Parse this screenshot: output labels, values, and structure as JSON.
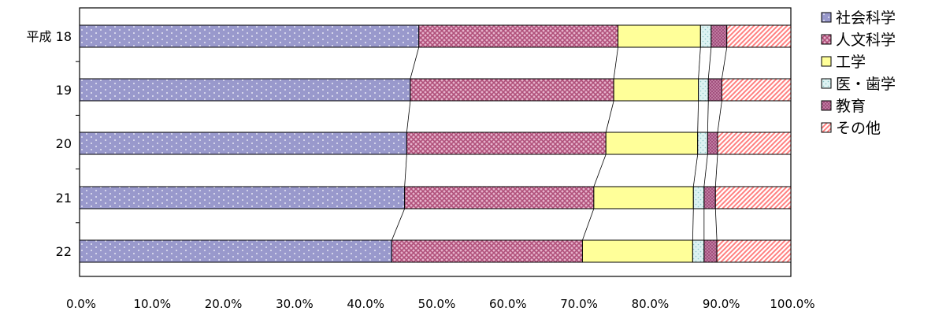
{
  "chart_data": {
    "type": "bar",
    "orientation": "horizontal",
    "stacked": "percent",
    "categories": [
      "平成 18",
      "19",
      "20",
      "21",
      "22"
    ],
    "series": [
      {
        "name": "社会科学",
        "values": [
          47.7,
          46.5,
          46.0,
          45.7,
          43.9
        ],
        "color": "#9999cc",
        "pattern": "dots"
      },
      {
        "name": "人文科学",
        "values": [
          28.0,
          28.6,
          28.0,
          26.6,
          26.8
        ],
        "color": "#b0507a",
        "pattern": "cross"
      },
      {
        "name": "工学",
        "values": [
          11.6,
          11.9,
          12.9,
          14.0,
          15.5
        ],
        "color": "#ffff99",
        "pattern": "solid"
      },
      {
        "name": "医・歯学",
        "values": [
          1.5,
          1.4,
          1.4,
          1.5,
          1.6
        ],
        "color": "#ddf2f2",
        "pattern": "dots"
      },
      {
        "name": "教育",
        "values": [
          2.2,
          1.9,
          1.4,
          1.6,
          1.8
        ],
        "color": "#a2507e",
        "pattern": "grid"
      },
      {
        "name": "その他",
        "values": [
          9.0,
          9.7,
          10.3,
          10.6,
          10.4
        ],
        "color": "#ff9999",
        "pattern": "diagonal"
      }
    ],
    "xlim": [
      0,
      100
    ],
    "x_ticks": [
      "0.0%",
      "10.0%",
      "20.0%",
      "30.0%",
      "40.0%",
      "50.0%",
      "60.0%",
      "70.0%",
      "80.0%",
      "90.0%",
      "100.0%"
    ],
    "series_lines": true,
    "grid": false,
    "legend_position": "right"
  }
}
